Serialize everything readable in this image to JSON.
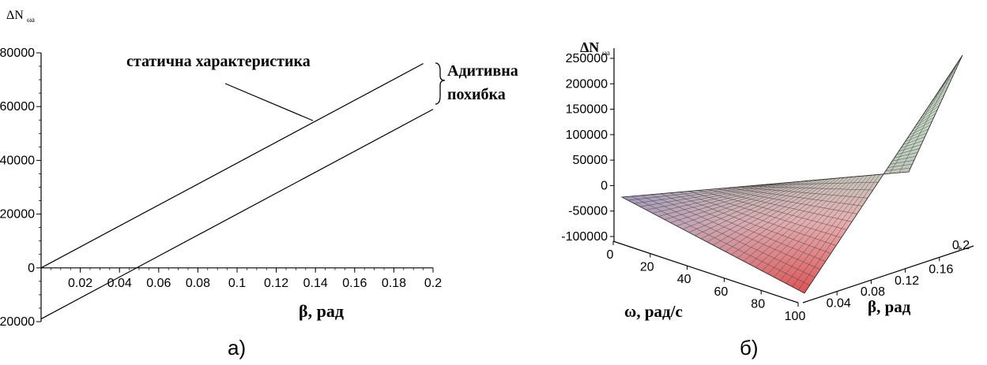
{
  "captions": {
    "left": "а)",
    "right": "б)"
  },
  "chart_data": [
    {
      "type": "line",
      "title": "",
      "ylabel_main": "ΔN",
      "ylabel_sub": "ωa",
      "xlabel": "β, рад",
      "xlim": [
        0,
        0.2
      ],
      "ylim": [
        -20000,
        80000
      ],
      "x_ticks": [
        0.02,
        0.04,
        0.06,
        0.08,
        0.1,
        0.12,
        0.14,
        0.16,
        0.18,
        0.2
      ],
      "x_tick_labels": [
        "0.02",
        "0.04",
        "0.06",
        "0.08",
        "0.1",
        "0.12",
        "0.14",
        "0.16",
        "0.18",
        "0.2"
      ],
      "y_ticks": [
        -20000,
        0,
        20000,
        40000,
        60000,
        80000
      ],
      "y_tick_labels": [
        "-20000",
        "0",
        "20000",
        "40000",
        "60000",
        "80000"
      ],
      "series": [
        {
          "values": [
            [
              0,
              0
            ],
            [
              0.195,
              76000
            ]
          ]
        },
        {
          "values": [
            [
              0,
              -19000
            ],
            [
              0.2,
              59000
            ]
          ]
        }
      ],
      "annotations": {
        "static_label": "статична характеристика",
        "additive_line1": "Адитивна",
        "additive_line2": "похибка"
      },
      "grid": false
    },
    {
      "type": "surface",
      "title": "",
      "zlabel_main": "ΔN",
      "zlabel_sub": "ωa",
      "xlabel": "ω, рад/с",
      "ylabel": "β, рад",
      "z_ticks": [
        -100000,
        -50000,
        0,
        50000,
        100000,
        150000,
        200000,
        250000
      ],
      "z_tick_labels": [
        "-100000",
        "-50000",
        "0",
        "50000",
        "100000",
        "150000",
        "200000",
        "250000"
      ],
      "x_ticks": [
        0,
        20,
        40,
        60,
        80,
        100
      ],
      "x_tick_labels": [
        "0",
        "20",
        "40",
        "60",
        "80",
        "100"
      ],
      "y_ticks": [
        0.04,
        0.08,
        0.12,
        0.16,
        0.2
      ],
      "y_tick_labels": [
        "0.04",
        "0.08",
        "0.12",
        "0.16",
        "0.2"
      ],
      "colors": {
        "high": "#d8e8d0",
        "low": "#e04848",
        "mid": "#f0c8c8",
        "corner": "#b0a8c8"
      }
    }
  ]
}
